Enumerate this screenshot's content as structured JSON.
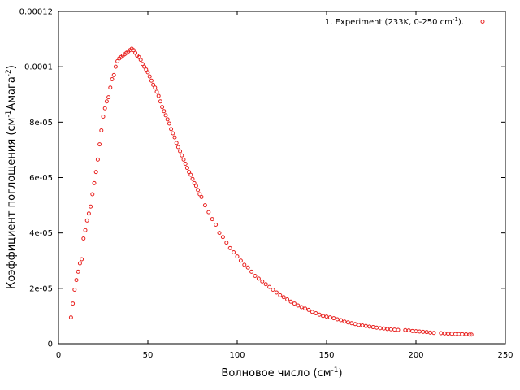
{
  "chart_data": {
    "type": "scatter",
    "title": "",
    "xlabel": "Волновое число (см",
    "xlabel_sup": "-1",
    "xlabel_end": ")",
    "ylabel": "Коэффициент поглощения (см",
    "ylabel_sup1": "-1",
    "ylabel_mid": "Амага",
    "ylabel_sup2": "-2",
    "ylabel_end": ")",
    "xlim": [
      0,
      250
    ],
    "ylim": [
      0,
      0.00012
    ],
    "xticks": [
      0,
      50,
      100,
      150,
      200,
      250
    ],
    "xtick_labels": [
      "0",
      "50",
      "100",
      "150",
      "200",
      "250"
    ],
    "yticks": [
      0,
      2e-05,
      4e-05,
      6e-05,
      8e-05,
      0.0001,
      0.00012
    ],
    "ytick_labels": [
      "0",
      "2e-05",
      "4e-05",
      "6e-05",
      "8e-05",
      "0.0001",
      "0.00012"
    ],
    "grid": false,
    "legend_position": "top-right",
    "series": [
      {
        "name": "1. Experiment (233K, 0-250 cm",
        "name_sup": "-1",
        "name_end": ").",
        "color": "#e8201e",
        "marker": "open-circle",
        "x": [
          7,
          8,
          9,
          10,
          11,
          12,
          13,
          14,
          15,
          16,
          17,
          18,
          19,
          20,
          21,
          22,
          23,
          24,
          25,
          26,
          27,
          28,
          29,
          30,
          31,
          32,
          33,
          34,
          35,
          36,
          37,
          38,
          39,
          40,
          41,
          42,
          43,
          44,
          45,
          46,
          47,
          48,
          49,
          50,
          51,
          52,
          53,
          54,
          55,
          56,
          57,
          58,
          59,
          60,
          61,
          62,
          63,
          64,
          65,
          66,
          67,
          68,
          69,
          70,
          71,
          72,
          73,
          74,
          75,
          76,
          77,
          78,
          79,
          80,
          82,
          84,
          86,
          88,
          90,
          92,
          94,
          96,
          98,
          100,
          102,
          104,
          106,
          108,
          110,
          112,
          114,
          116,
          118,
          120,
          122,
          124,
          126,
          128,
          130,
          132,
          134,
          136,
          138,
          140,
          142,
          144,
          146,
          148,
          150,
          152,
          154,
          156,
          158,
          160,
          162,
          164,
          166,
          168,
          170,
          172,
          174,
          176,
          178,
          180,
          182,
          184,
          186,
          188,
          190,
          194,
          196,
          198,
          200,
          202,
          204,
          206,
          208,
          210,
          214,
          216,
          218,
          220,
          222,
          224,
          226,
          228,
          230,
          231
        ],
        "y": [
          9.5e-06,
          1.45e-05,
          1.95e-05,
          2.3e-05,
          2.6e-05,
          2.9e-05,
          3.05e-05,
          3.8e-05,
          4.1e-05,
          4.45e-05,
          4.7e-05,
          4.95e-05,
          5.4e-05,
          5.8e-05,
          6.2e-05,
          6.65e-05,
          7.2e-05,
          7.7e-05,
          8.2e-05,
          8.5e-05,
          8.75e-05,
          8.9e-05,
          9.25e-05,
          9.55e-05,
          9.7e-05,
          0.0001,
          0.000102,
          0.000103,
          0.0001035,
          0.000104,
          0.0001045,
          0.000105,
          0.0001055,
          0.000106,
          0.0001065,
          0.000106,
          0.000105,
          0.000104,
          0.0001035,
          0.0001025,
          0.000101,
          0.0001,
          9.9e-05,
          9.8e-05,
          9.65e-05,
          9.5e-05,
          9.35e-05,
          9.25e-05,
          9.1e-05,
          8.95e-05,
          8.75e-05,
          8.55e-05,
          8.4e-05,
          8.25e-05,
          8.1e-05,
          7.95e-05,
          7.75e-05,
          7.6e-05,
          7.45e-05,
          7.25e-05,
          7.1e-05,
          6.95e-05,
          6.8e-05,
          6.65e-05,
          6.5e-05,
          6.35e-05,
          6.2e-05,
          6.1e-05,
          5.95e-05,
          5.8e-05,
          5.7e-05,
          5.55e-05,
          5.4e-05,
          5.3e-05,
          5e-05,
          4.75e-05,
          4.5e-05,
          4.3e-05,
          4e-05,
          3.85e-05,
          3.65e-05,
          3.45e-05,
          3.3e-05,
          3.15e-05,
          3e-05,
          2.85e-05,
          2.75e-05,
          2.6e-05,
          2.45e-05,
          2.35e-05,
          2.25e-05,
          2.15e-05,
          2.05e-05,
          1.95e-05,
          1.85e-05,
          1.75e-05,
          1.68e-05,
          1.6e-05,
          1.52e-05,
          1.45e-05,
          1.38e-05,
          1.32e-05,
          1.27e-05,
          1.22e-05,
          1.15e-05,
          1.1e-05,
          1.05e-05,
          1e-05,
          9.8e-06,
          9.5e-06,
          9.2e-06,
          8.8e-06,
          8.5e-06,
          8e-06,
          7.7e-06,
          7.4e-06,
          7.1e-06,
          6.8e-06,
          6.6e-06,
          6.4e-06,
          6.2e-06,
          6e-06,
          5.8e-06,
          5.6e-06,
          5.5e-06,
          5.3e-06,
          5.2e-06,
          5.1e-06,
          5e-06,
          4.9e-06,
          4.8e-06,
          4.6e-06,
          4.5e-06,
          4.4e-06,
          4.3e-06,
          4.2e-06,
          4e-06,
          3.9e-06,
          3.8e-06,
          3.7e-06,
          3.6e-06,
          3.6e-06,
          3.5e-06,
          3.5e-06,
          3.4e-06,
          3.4e-06,
          3.3e-06,
          3.3e-06
        ]
      }
    ]
  }
}
